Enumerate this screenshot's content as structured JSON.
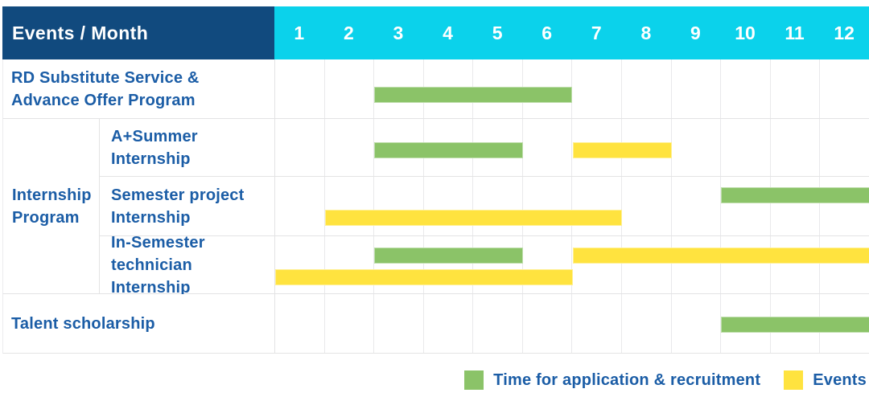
{
  "header": {
    "label": "Events / Month",
    "months": [
      "1",
      "2",
      "3",
      "4",
      "5",
      "6",
      "7",
      "8",
      "9",
      "10",
      "11",
      "12"
    ]
  },
  "group": {
    "label_lines": [
      "Internship",
      "Program"
    ]
  },
  "rows": [
    {
      "id": "rd-substitute-service",
      "label_lines": [
        "RD Substitute Service &",
        "Advance Offer Program"
      ],
      "in_group": false,
      "bars": [
        {
          "kind": "recruitment",
          "from": 3,
          "to": 6,
          "lane": 0
        }
      ]
    },
    {
      "id": "a-plus-summer-internship",
      "label_lines": [
        "A+Summer",
        "Internship"
      ],
      "in_group": true,
      "bars": [
        {
          "kind": "recruitment",
          "from": 3,
          "to": 5,
          "lane": 0
        },
        {
          "kind": "events",
          "from": 7,
          "to": 8,
          "lane": 0
        }
      ]
    },
    {
      "id": "semester-project-internship",
      "label_lines": [
        "Semester project",
        "Internship"
      ],
      "in_group": true,
      "bars": [
        {
          "kind": "recruitment",
          "from": 10,
          "to": 12,
          "lane": 0
        },
        {
          "kind": "events",
          "from": 2,
          "to": 7,
          "lane": 1
        }
      ]
    },
    {
      "id": "in-semester-technician-internship",
      "label_lines": [
        "In-Semester",
        "technician Internship"
      ],
      "in_group": true,
      "bars": [
        {
          "kind": "recruitment",
          "from": 3,
          "to": 5,
          "lane": 0
        },
        {
          "kind": "events",
          "from": 7,
          "to": 12,
          "lane": 0
        },
        {
          "kind": "events",
          "from": 1,
          "to": 6,
          "lane": 1
        }
      ]
    },
    {
      "id": "talent-scholarship",
      "label_lines": [
        "Talent scholarship"
      ],
      "in_group": false,
      "bars": [
        {
          "kind": "recruitment",
          "from": 10,
          "to": 12,
          "lane": 0
        }
      ]
    }
  ],
  "legend": {
    "items": [
      {
        "kind": "recruitment",
        "label": "Time for application & recruitment"
      },
      {
        "kind": "events",
        "label": "Events"
      }
    ]
  },
  "colors": {
    "header_bg": "#114A7E",
    "month_header_bg": "#0BD2EB",
    "recruitment_green": "#8BC368",
    "events_yellow": "#FFE33F",
    "label_text": "#1B5DA6",
    "header_text": "#FFFFFF",
    "grid_line": "#E9E9EB",
    "row_border": "#E3E3E4"
  },
  "chart_data": {
    "type": "gantt",
    "title": "Events / Month",
    "x_unit": "month",
    "x_ticks": [
      1,
      2,
      3,
      4,
      5,
      6,
      7,
      8,
      9,
      10,
      11,
      12
    ],
    "x_range": [
      1,
      12
    ],
    "grid": true,
    "legend_position": "bottom-right",
    "legend": [
      {
        "label": "Time for application & recruitment",
        "color": "#8BC368"
      },
      {
        "label": "Events",
        "color": "#FFE33F"
      }
    ],
    "rows": [
      {
        "event": "RD Substitute Service & Advance Offer Program",
        "spans": [
          {
            "series": "Time for application & recruitment",
            "start_month": 3,
            "end_month": 6
          }
        ]
      },
      {
        "event": "Internship Program / A+Summer Internship",
        "spans": [
          {
            "series": "Time for application & recruitment",
            "start_month": 3,
            "end_month": 5
          },
          {
            "series": "Events",
            "start_month": 7,
            "end_month": 8
          }
        ]
      },
      {
        "event": "Internship Program / Semester project Internship",
        "spans": [
          {
            "series": "Time for application & recruitment",
            "start_month": 10,
            "end_month": 12
          },
          {
            "series": "Events",
            "start_month": 2,
            "end_month": 7
          }
        ]
      },
      {
        "event": "Internship Program / In-Semester technician Internship",
        "spans": [
          {
            "series": "Time for application & recruitment",
            "start_month": 3,
            "end_month": 5
          },
          {
            "series": "Events",
            "start_month": 7,
            "end_month": 12
          },
          {
            "series": "Events",
            "start_month": 1,
            "end_month": 6
          }
        ]
      },
      {
        "event": "Talent scholarship",
        "spans": [
          {
            "series": "Time for application & recruitment",
            "start_month": 10,
            "end_month": 12
          }
        ]
      }
    ]
  }
}
